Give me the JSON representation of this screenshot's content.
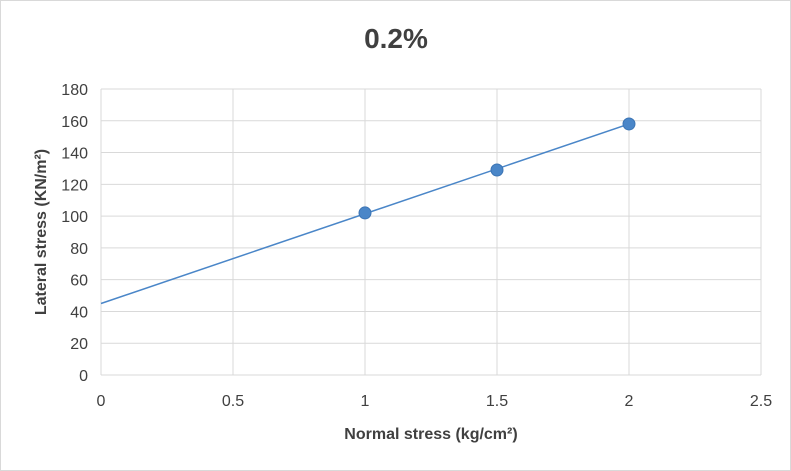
{
  "chart_data": {
    "type": "scatter",
    "title": "0.2%",
    "xlabel": "Normal stress (kg/cm²)",
    "ylabel": "Lateral stress (KN/m²)",
    "xlim": [
      0,
      2.5
    ],
    "ylim": [
      0,
      180
    ],
    "x_ticks": [
      "0",
      "0.5",
      "1",
      "1.5",
      "2",
      "2.5"
    ],
    "y_ticks": [
      "0",
      "20",
      "40",
      "60",
      "80",
      "100",
      "120",
      "140",
      "160",
      "180"
    ],
    "grid": true,
    "series": [
      {
        "x": [
          1,
          1.5,
          2
        ],
        "y": [
          102,
          129,
          158
        ],
        "color": "#4a86c8"
      }
    ],
    "trendline": {
      "type": "linear",
      "x_range": [
        0,
        2
      ],
      "y_at_range": [
        45,
        158
      ],
      "color": "#4a86c8"
    }
  }
}
